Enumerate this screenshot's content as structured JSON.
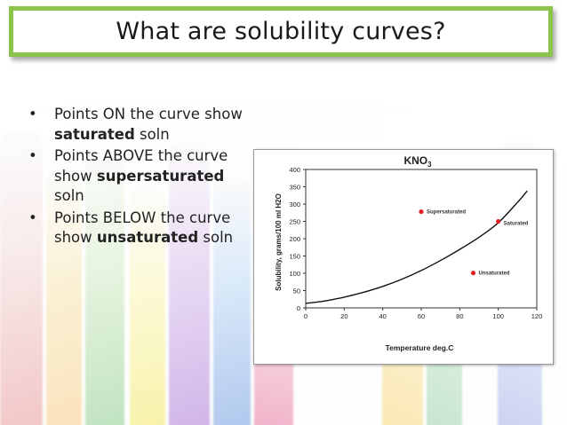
{
  "title": "What are solubility curves?",
  "bullets": [
    {
      "pre": "Points ON the curve show ",
      "bold": "saturated",
      "post": " soln"
    },
    {
      "pre": "Points ABOVE the curve show ",
      "bold": "supersaturated",
      "post": " soln"
    },
    {
      "pre": "Points BELOW the curve show ",
      "bold": "unsaturated",
      "post": " soln"
    }
  ],
  "colors": {
    "title_border": "#8cc34a",
    "point": "#dd2222"
  },
  "chart_data": {
    "type": "scatter",
    "title": "KNO3",
    "xlabel": "Temperature deg.C",
    "ylabel": "Solubility, grams/100 ml H2O",
    "xlim": [
      0,
      120
    ],
    "ylim": [
      0,
      400
    ],
    "x_ticks": [
      0,
      20,
      40,
      60,
      80,
      100,
      120
    ],
    "y_ticks": [
      0,
      50,
      100,
      150,
      200,
      250,
      300,
      350,
      400
    ],
    "grid": false,
    "series": [
      {
        "type": "line",
        "x": [
          0,
          10,
          20,
          30,
          40,
          50,
          60,
          70,
          80,
          90,
          100,
          110,
          115
        ],
        "y": [
          13,
          20,
          31,
          45,
          62,
          83,
          108,
          137,
          169,
          204,
          246,
          305,
          338
        ]
      }
    ],
    "points": [
      {
        "label": "Supersaturated",
        "x": 60,
        "y": 278
      },
      {
        "label": "Saturated",
        "x": 100,
        "y": 250
      },
      {
        "label": "Unsaturated",
        "x": 87,
        "y": 101
      }
    ]
  }
}
